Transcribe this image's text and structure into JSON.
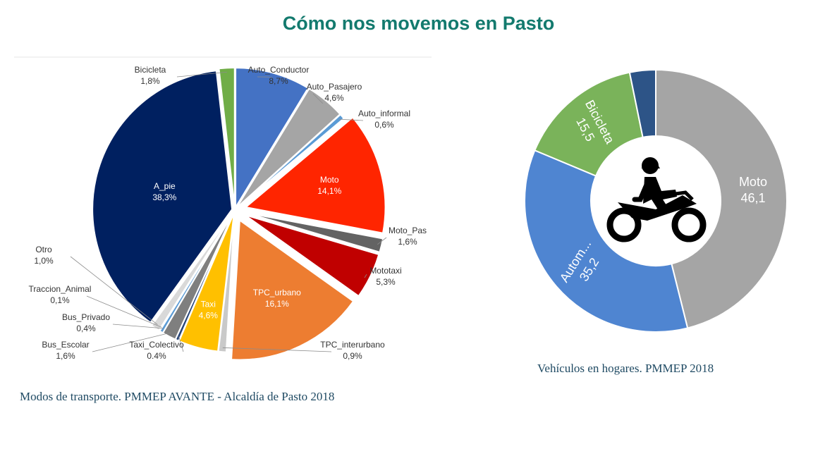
{
  "title": "Cómo nos movemos en Pasto",
  "captions": {
    "left": "Modos de transporte. PMMEP AVANTE - Alcaldía de Pasto 2018",
    "right": "Vehículos en hogares.  PMMEP 2018"
  },
  "icons": {
    "center": "motorcycle-rider-icon"
  },
  "chart_data": [
    {
      "type": "pie",
      "title": "",
      "legend": "none",
      "slices": [
        {
          "label": "Auto_Conductor",
          "display": "8,7%",
          "value": 8.7,
          "color": "#4472c4",
          "exploded": false
        },
        {
          "label": "Auto_Pasajero",
          "display": "4,6%",
          "value": 4.6,
          "color": "#a5a5a5",
          "exploded": false
        },
        {
          "label": "Auto_informal",
          "display": "0,6%",
          "value": 0.6,
          "color": "#5b9bd5",
          "exploded": false
        },
        {
          "label": "Moto",
          "display": "14,1%",
          "value": 14.1,
          "color": "#ff2500",
          "exploded": true
        },
        {
          "label": "Moto_Pas",
          "display": "1,6%",
          "value": 1.6,
          "color": "#636363",
          "exploded": true
        },
        {
          "label": "Mototaxi",
          "display": "5,3%",
          "value": 5.3,
          "color": "#c00000",
          "exploded": true
        },
        {
          "label": "TPC_urbano",
          "display": "16,1%",
          "value": 16.1,
          "color": "#ed7d31",
          "exploded": true
        },
        {
          "label": "TPC_interurbano",
          "display": "0,9%",
          "value": 0.9,
          "color": "#c9c9c9",
          "exploded": false
        },
        {
          "label": "Taxi",
          "display": "4,6%",
          "value": 4.6,
          "color": "#ffc000",
          "exploded": false
        },
        {
          "label": "Taxi_Colectivo",
          "display": "0.4%",
          "value": 0.4,
          "color": "#264478",
          "exploded": false
        },
        {
          "label": "Bus_Escolar",
          "display": "1,6%",
          "value": 1.6,
          "color": "#7f7f7f",
          "exploded": false
        },
        {
          "label": "Bus_Privado",
          "display": "0,4%",
          "value": 0.4,
          "color": "#5b9bd5",
          "exploded": false
        },
        {
          "label": "Traccion_Animal",
          "display": "0,1%",
          "value": 0.1,
          "color": "#70ad47",
          "exploded": false
        },
        {
          "label": "Otro",
          "display": "1,0%",
          "value": 1.0,
          "color": "#d9d9d9",
          "exploded": false
        },
        {
          "label": "A_pie",
          "display": "38,3%",
          "value": 38.3,
          "color": "#002060",
          "exploded": false
        },
        {
          "label": "Bicicleta",
          "display": "1,8%",
          "value": 1.8,
          "color": "#70ad47",
          "exploded": false
        }
      ]
    },
    {
      "type": "pie",
      "subtype": "donut",
      "title": "",
      "legend": "none",
      "slices": [
        {
          "label": "Moto",
          "display": "46,1",
          "value": 46.1,
          "color": "#a5a5a5"
        },
        {
          "label": "Autom...",
          "display": "35,2",
          "value": 35.2,
          "color": "#4f85d1"
        },
        {
          "label": "Bicicleta",
          "display": "15,5",
          "value": 15.5,
          "color": "#7ab35a"
        },
        {
          "label": "",
          "display": "",
          "value": 3.2,
          "color": "#2d5487"
        }
      ]
    }
  ]
}
